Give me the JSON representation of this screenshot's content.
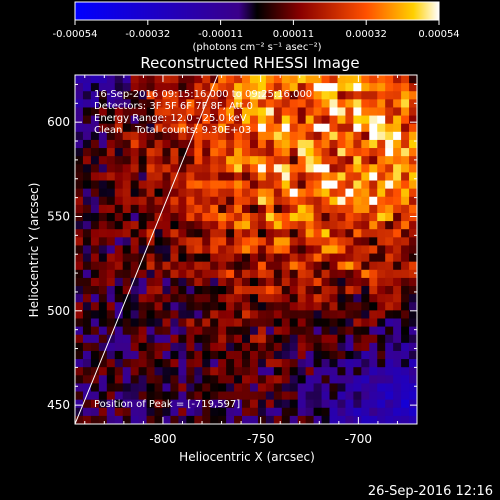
{
  "chart_data": {
    "type": "heatmap",
    "title": "Reconstructed RHESSI Image",
    "xlabel": "Heliocentric X (arcsec)",
    "ylabel": "Heliocentric Y (arcsec)",
    "xlim": [
      -845,
      -670
    ],
    "ylim": [
      440,
      625
    ],
    "x_ticks": [
      -800,
      -750,
      -700
    ],
    "y_ticks": [
      450,
      500,
      550,
      600
    ],
    "colorbar": {
      "ticks": [
        "-0.00054",
        "-0.00032",
        "-0.00011",
        "0.00011",
        "0.00032",
        "0.00054"
      ],
      "range": [
        -0.00054,
        0.00054
      ],
      "unit_label": "(photons cm⁻² s⁻¹ asec⁻²)"
    },
    "annotations": [
      "16-Sep-2016 09:15:16.000 to 09:25:16.000",
      "Detectors: 3F 5F 6F 7F 8F, Att 0",
      "Energy Range: 12.0 - 25.0 keV",
      "Clean    Total counts: 9.30E+03"
    ],
    "peak_label": "Position of Peak = [-719,597]",
    "peak": {
      "x": -719,
      "y": 597
    },
    "limb_line": {
      "x": [
        -845,
        -772
      ],
      "y": [
        440,
        625
      ]
    }
  },
  "footer": {
    "date": "26-Sep-2016 12:16"
  }
}
